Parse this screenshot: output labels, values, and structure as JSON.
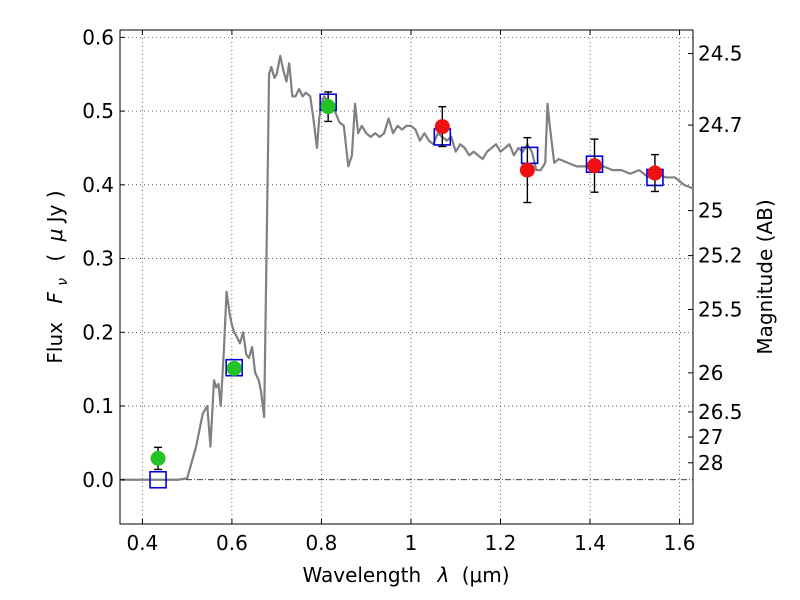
{
  "chart_data": {
    "type": "line",
    "title": "",
    "xlabel": "Wavelength",
    "xlabel_symbol": "λ",
    "xlabel_unit": "(μm)",
    "ylabel": "Flux",
    "ylabel_symbol": "F",
    "ylabel_symbol_sub": "ν",
    "ylabel_unit_open": "(",
    "ylabel_unit_mu": "μ",
    "ylabel_unit_rest": "Jy )",
    "y2label": "Magnitude (AB)",
    "xlim": [
      0.35,
      1.63
    ],
    "ylim": [
      -0.06,
      0.61
    ],
    "grid": true,
    "x_ticks": [
      0.4,
      0.6,
      0.8,
      1.0,
      1.2,
      1.4,
      1.6
    ],
    "x_tick_labels": [
      "0.4",
      "0.6",
      "0.8",
      "1",
      "1.2",
      "1.4",
      "1.6"
    ],
    "y_ticks": [
      0.0,
      0.1,
      0.2,
      0.3,
      0.4,
      0.5,
      0.6
    ],
    "y_tick_labels": [
      "0.0",
      "0.1",
      "0.2",
      "0.3",
      "0.4",
      "0.5",
      "0.6"
    ],
    "y2_ticks": [
      {
        "label": "24.5",
        "flux": 0.578
      },
      {
        "label": "24.7",
        "flux": 0.481
      },
      {
        "label": "25",
        "flux": 0.365
      },
      {
        "label": "25.2",
        "flux": 0.304
      },
      {
        "label": "25.5",
        "flux": 0.231
      },
      {
        "label": "26",
        "flux": 0.145
      },
      {
        "label": "26.5",
        "flux": 0.092
      },
      {
        "label": "27",
        "flux": 0.058
      },
      {
        "label": "28",
        "flux": 0.023
      }
    ],
    "series": [
      {
        "name": "model spectrum",
        "kind": "line",
        "color": "#808080",
        "x": [
          0.35,
          0.48,
          0.5,
          0.52,
          0.535,
          0.545,
          0.552,
          0.56,
          0.565,
          0.57,
          0.575,
          0.582,
          0.588,
          0.595,
          0.6,
          0.605,
          0.61,
          0.618,
          0.625,
          0.632,
          0.638,
          0.645,
          0.652,
          0.66,
          0.665,
          0.672,
          0.68,
          0.683,
          0.688,
          0.695,
          0.7,
          0.708,
          0.715,
          0.722,
          0.728,
          0.735,
          0.742,
          0.75,
          0.758,
          0.765,
          0.775,
          0.782,
          0.79,
          0.795,
          0.8,
          0.806,
          0.812,
          0.82,
          0.83,
          0.84,
          0.85,
          0.86,
          0.868,
          0.875,
          0.882,
          0.89,
          0.9,
          0.91,
          0.92,
          0.93,
          0.94,
          0.95,
          0.96,
          0.97,
          0.98,
          0.99,
          1.0,
          1.01,
          1.02,
          1.03,
          1.04,
          1.05,
          1.06,
          1.07,
          1.08,
          1.09,
          1.1,
          1.11,
          1.12,
          1.13,
          1.14,
          1.15,
          1.16,
          1.17,
          1.18,
          1.19,
          1.2,
          1.21,
          1.22,
          1.23,
          1.24,
          1.25,
          1.26,
          1.27,
          1.28,
          1.29,
          1.3,
          1.305,
          1.31,
          1.32,
          1.33,
          1.35,
          1.37,
          1.39,
          1.41,
          1.43,
          1.45,
          1.47,
          1.49,
          1.51,
          1.53,
          1.55,
          1.57,
          1.59,
          1.61,
          1.63
        ],
        "y": [
          0.0,
          0.0,
          0.002,
          0.045,
          0.09,
          0.1,
          0.045,
          0.135,
          0.125,
          0.13,
          0.1,
          0.175,
          0.255,
          0.225,
          0.21,
          0.2,
          0.195,
          0.185,
          0.2,
          0.17,
          0.165,
          0.18,
          0.145,
          0.135,
          0.12,
          0.085,
          0.42,
          0.55,
          0.56,
          0.545,
          0.55,
          0.575,
          0.555,
          0.54,
          0.565,
          0.52,
          0.52,
          0.53,
          0.52,
          0.525,
          0.52,
          0.49,
          0.45,
          0.49,
          0.51,
          0.52,
          0.515,
          0.51,
          0.5,
          0.485,
          0.48,
          0.425,
          0.44,
          0.51,
          0.47,
          0.48,
          0.47,
          0.465,
          0.47,
          0.465,
          0.47,
          0.49,
          0.47,
          0.48,
          0.475,
          0.48,
          0.48,
          0.475,
          0.46,
          0.47,
          0.46,
          0.455,
          0.47,
          0.465,
          0.46,
          0.465,
          0.445,
          0.455,
          0.45,
          0.44,
          0.445,
          0.44,
          0.435,
          0.445,
          0.45,
          0.455,
          0.445,
          0.45,
          0.455,
          0.44,
          0.45,
          0.445,
          0.455,
          0.445,
          0.42,
          0.42,
          0.43,
          0.51,
          0.48,
          0.43,
          0.435,
          0.43,
          0.425,
          0.425,
          0.43,
          0.425,
          0.42,
          0.42,
          0.415,
          0.42,
          0.41,
          0.415,
          0.41,
          0.41,
          0.4,
          0.395
        ]
      },
      {
        "name": "model bandpass fluxes",
        "kind": "open-square",
        "color": "#0000dd",
        "x": [
          0.435,
          0.605,
          0.815,
          1.07,
          1.265,
          1.41,
          1.545
        ],
        "y": [
          0.0,
          0.152,
          0.512,
          0.465,
          0.44,
          0.428,
          0.41
        ]
      },
      {
        "name": "observed fluxes (green)",
        "kind": "filled-circle",
        "color": "#22c322",
        "x": [
          0.435,
          0.605,
          0.815
        ],
        "y": [
          0.029,
          0.151,
          0.506
        ],
        "err": [
          0.015,
          0.0,
          0.02
        ]
      },
      {
        "name": "observed fluxes (red)",
        "kind": "filled-circle",
        "color": "#ee1111",
        "x": [
          1.07,
          1.26,
          1.41,
          1.545
        ],
        "y": [
          0.479,
          0.42,
          0.426,
          0.416
        ],
        "err": [
          0.027,
          0.044,
          0.036,
          0.025
        ]
      }
    ]
  }
}
